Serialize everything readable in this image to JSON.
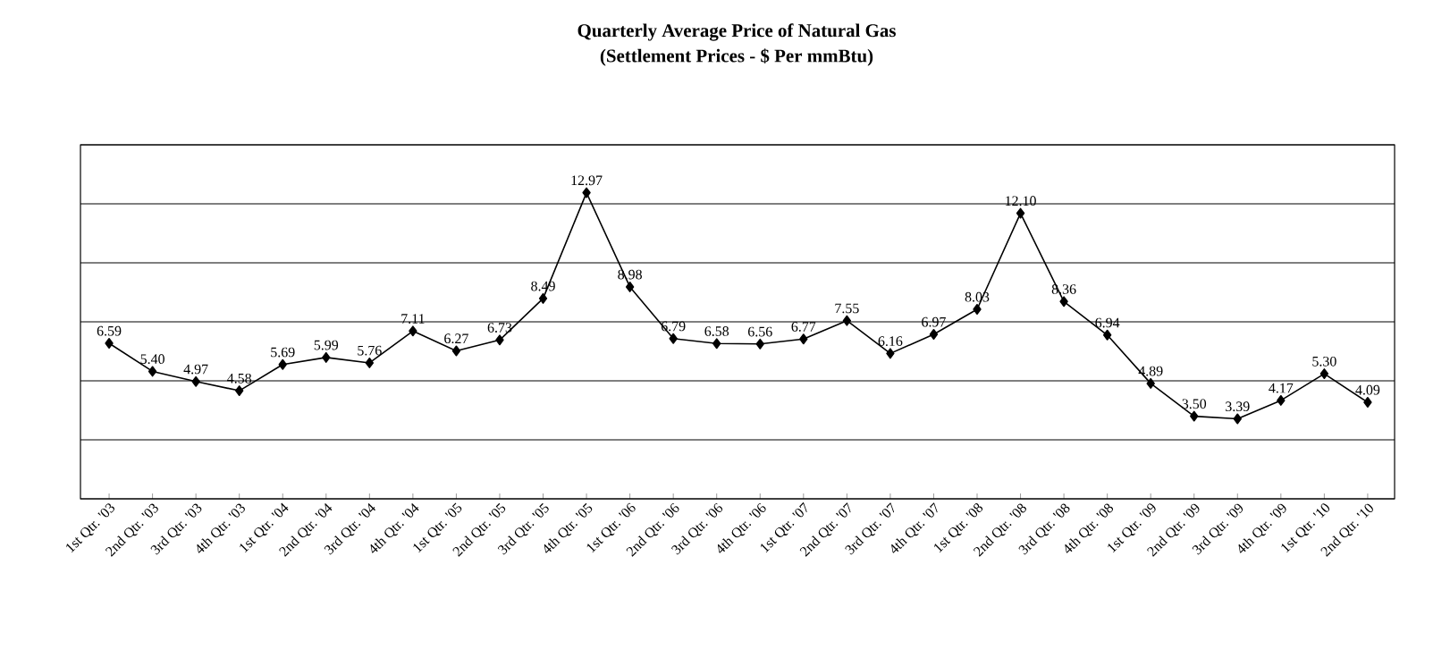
{
  "chart_data": {
    "type": "line",
    "title": "Quarterly Average Price of Natural Gas",
    "subtitle": "(Settlement Prices - $ Per mmBtu)",
    "categories": [
      "1st Qtr. '03",
      "2nd Qtr. '03",
      "3rd Qtr. '03",
      "4th Qtr. '03",
      "1st Qtr. '04",
      "2nd Qtr. '04",
      "3rd Qtr. '04",
      "4th Qtr. '04",
      "1st Qtr. '05",
      "2nd Qtr. '05",
      "3rd Qtr. '05",
      "4th Qtr. '05",
      "1st Qtr. '06",
      "2nd Qtr. '06",
      "3rd Qtr. '06",
      "4th Qtr. '06",
      "1st Qtr. '07",
      "2nd Qtr. '07",
      "3rd Qtr. '07",
      "4th Qtr. '07",
      "1st Qtr. '08",
      "2nd Qtr. '08",
      "3rd Qtr. '08",
      "4th Qtr. '08",
      "1st Qtr. '09",
      "2nd Qtr. '09",
      "3rd Qtr. '09",
      "4th Qtr. '09",
      "1st Qtr. '10",
      "2nd Qtr. '10"
    ],
    "values": [
      6.59,
      5.4,
      4.97,
      4.58,
      5.69,
      5.99,
      5.76,
      7.11,
      6.27,
      6.73,
      8.49,
      12.97,
      8.98,
      6.79,
      6.58,
      6.56,
      6.77,
      7.55,
      6.16,
      6.97,
      8.03,
      12.1,
      8.36,
      6.94,
      4.89,
      3.5,
      3.39,
      4.17,
      5.3,
      4.09
    ],
    "value_labels": [
      "6.59",
      "5.40",
      "4.97",
      "4.58",
      "5.69",
      "5.99",
      "5.76",
      "7.11",
      "6.27",
      "6.73",
      "8.49",
      "12.97",
      "8.98",
      "6.79",
      "6.58",
      "6.56",
      "6.77",
      "7.55",
      "6.16",
      "6.97",
      "8.03",
      "12.10",
      "8.36",
      "6.94",
      "4.89",
      "3.50",
      "3.39",
      "4.17",
      "5.30",
      "4.09"
    ],
    "color": "#000000",
    "ylim": [
      0,
      15
    ],
    "yticks": [
      {
        "value": 0,
        "label": null
      },
      {
        "value": 2.5,
        "label": null
      },
      {
        "value": 5,
        "label": null
      },
      {
        "value": 7.5,
        "label": null
      },
      {
        "value": 10,
        "label": null
      },
      {
        "value": 12.5,
        "label": null
      },
      {
        "value": 15,
        "label": null
      }
    ],
    "tick_labels": "x",
    "grid": "y",
    "marker": "diamond",
    "line_style": "solid"
  }
}
